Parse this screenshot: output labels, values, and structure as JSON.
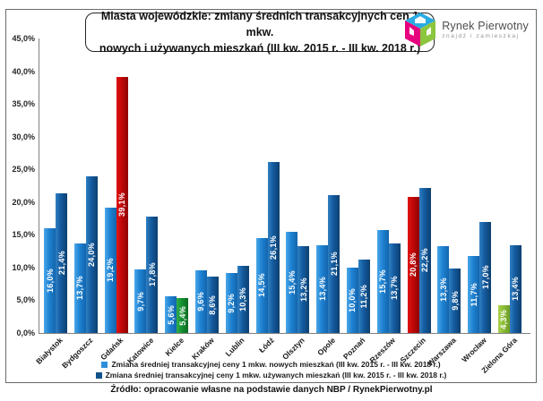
{
  "header": {
    "title_line1": "Miasta wojewódzkie: zmiany średnich transakcyjnych cen 1 mkw.",
    "title_line2": "nowych i używanych mieszkań (III kw. 2015 r. - III kw. 2018 r.)",
    "logo": {
      "name": "Rynek Pierwotny",
      "tagline": "znajdź i zamieszkaj"
    }
  },
  "chart_data": {
    "type": "bar",
    "title": "Miasta wojewódzkie: zmiany średnich transakcyjnych cen 1 mkw. nowych i używanych mieszkań (III kw. 2015 r. - III kw. 2018 r.)",
    "categories": [
      "Białystok",
      "Bydgoszcz",
      "Gdańsk",
      "Katowice",
      "Kielce",
      "Kraków",
      "Lublin",
      "Łódź",
      "Olsztyn",
      "Opole",
      "Poznań",
      "Rzeszów",
      "Szczecin",
      "Warszawa",
      "Wrocław",
      "Zielona Góra"
    ],
    "series": [
      {
        "name": "Zmiana średniej transakcyjnej ceny 1 mkw. nowych mieszkań (III kw. 2015 r. - III kw. 2018 r.)",
        "role": "new",
        "values": [
          16.0,
          13.7,
          19.2,
          9.7,
          5.6,
          9.6,
          9.2,
          14.5,
          15.4,
          13.4,
          10.0,
          15.7,
          20.8,
          13.3,
          11.7,
          4.3
        ],
        "labels": [
          "16,0%",
          "13,7%",
          "19,2%",
          "9,7%",
          "5,6%",
          "9,6%",
          "9,2%",
          "14,5%",
          "15,4%",
          "13,4%",
          "10,0%",
          "15,7%",
          "20,8%",
          "13,3%",
          "11,7%",
          "4,3%"
        ],
        "point_styles": [
          null,
          null,
          null,
          null,
          null,
          null,
          null,
          null,
          null,
          null,
          null,
          null,
          "highlight-max",
          null,
          null,
          "highlight-min-light"
        ]
      },
      {
        "name": "Zmiana średniej transakcyjnej ceny 1 mkw. używanych mieszkań (III kw. 2015 r. - III kw. 2018 r.)",
        "role": "used",
        "values": [
          21.4,
          24.0,
          39.1,
          17.8,
          5.4,
          8.6,
          10.3,
          26.1,
          13.2,
          21.1,
          11.2,
          13.7,
          22.2,
          9.8,
          17.0,
          13.4
        ],
        "labels": [
          "21,4%",
          "24,0%",
          "39,1%",
          "17,8%",
          "5,4%",
          "8,6%",
          "10,3%",
          "26,1%",
          "13,2%",
          "21,1%",
          "11,2%",
          "13,7%",
          "22,2%",
          "9,8%",
          "17,0%",
          "13,4%"
        ],
        "point_styles": [
          null,
          null,
          "highlight-max",
          null,
          "highlight-min-dark",
          null,
          null,
          null,
          null,
          null,
          null,
          null,
          null,
          null,
          null,
          null
        ]
      }
    ],
    "ylim": [
      0,
      45
    ],
    "ytick_labels": [
      "45,0%",
      "40,0%",
      "35,0%",
      "30,0%",
      "25,0%",
      "20,0%",
      "15,0%",
      "10,0%",
      "5,0%",
      "0,0%"
    ],
    "grid": "off",
    "legend_position": "bottom",
    "colors": {
      "new_bar": "#1e82d2",
      "used_bar": "#135a9e",
      "max_highlight": "#c00707",
      "min_highlight_used": "#149032",
      "min_highlight_new": "#8bbc35"
    }
  },
  "footer": {
    "source": "Źródło: opracowanie własne na podstawie danych NBP / RynekPierwotny.pl"
  }
}
